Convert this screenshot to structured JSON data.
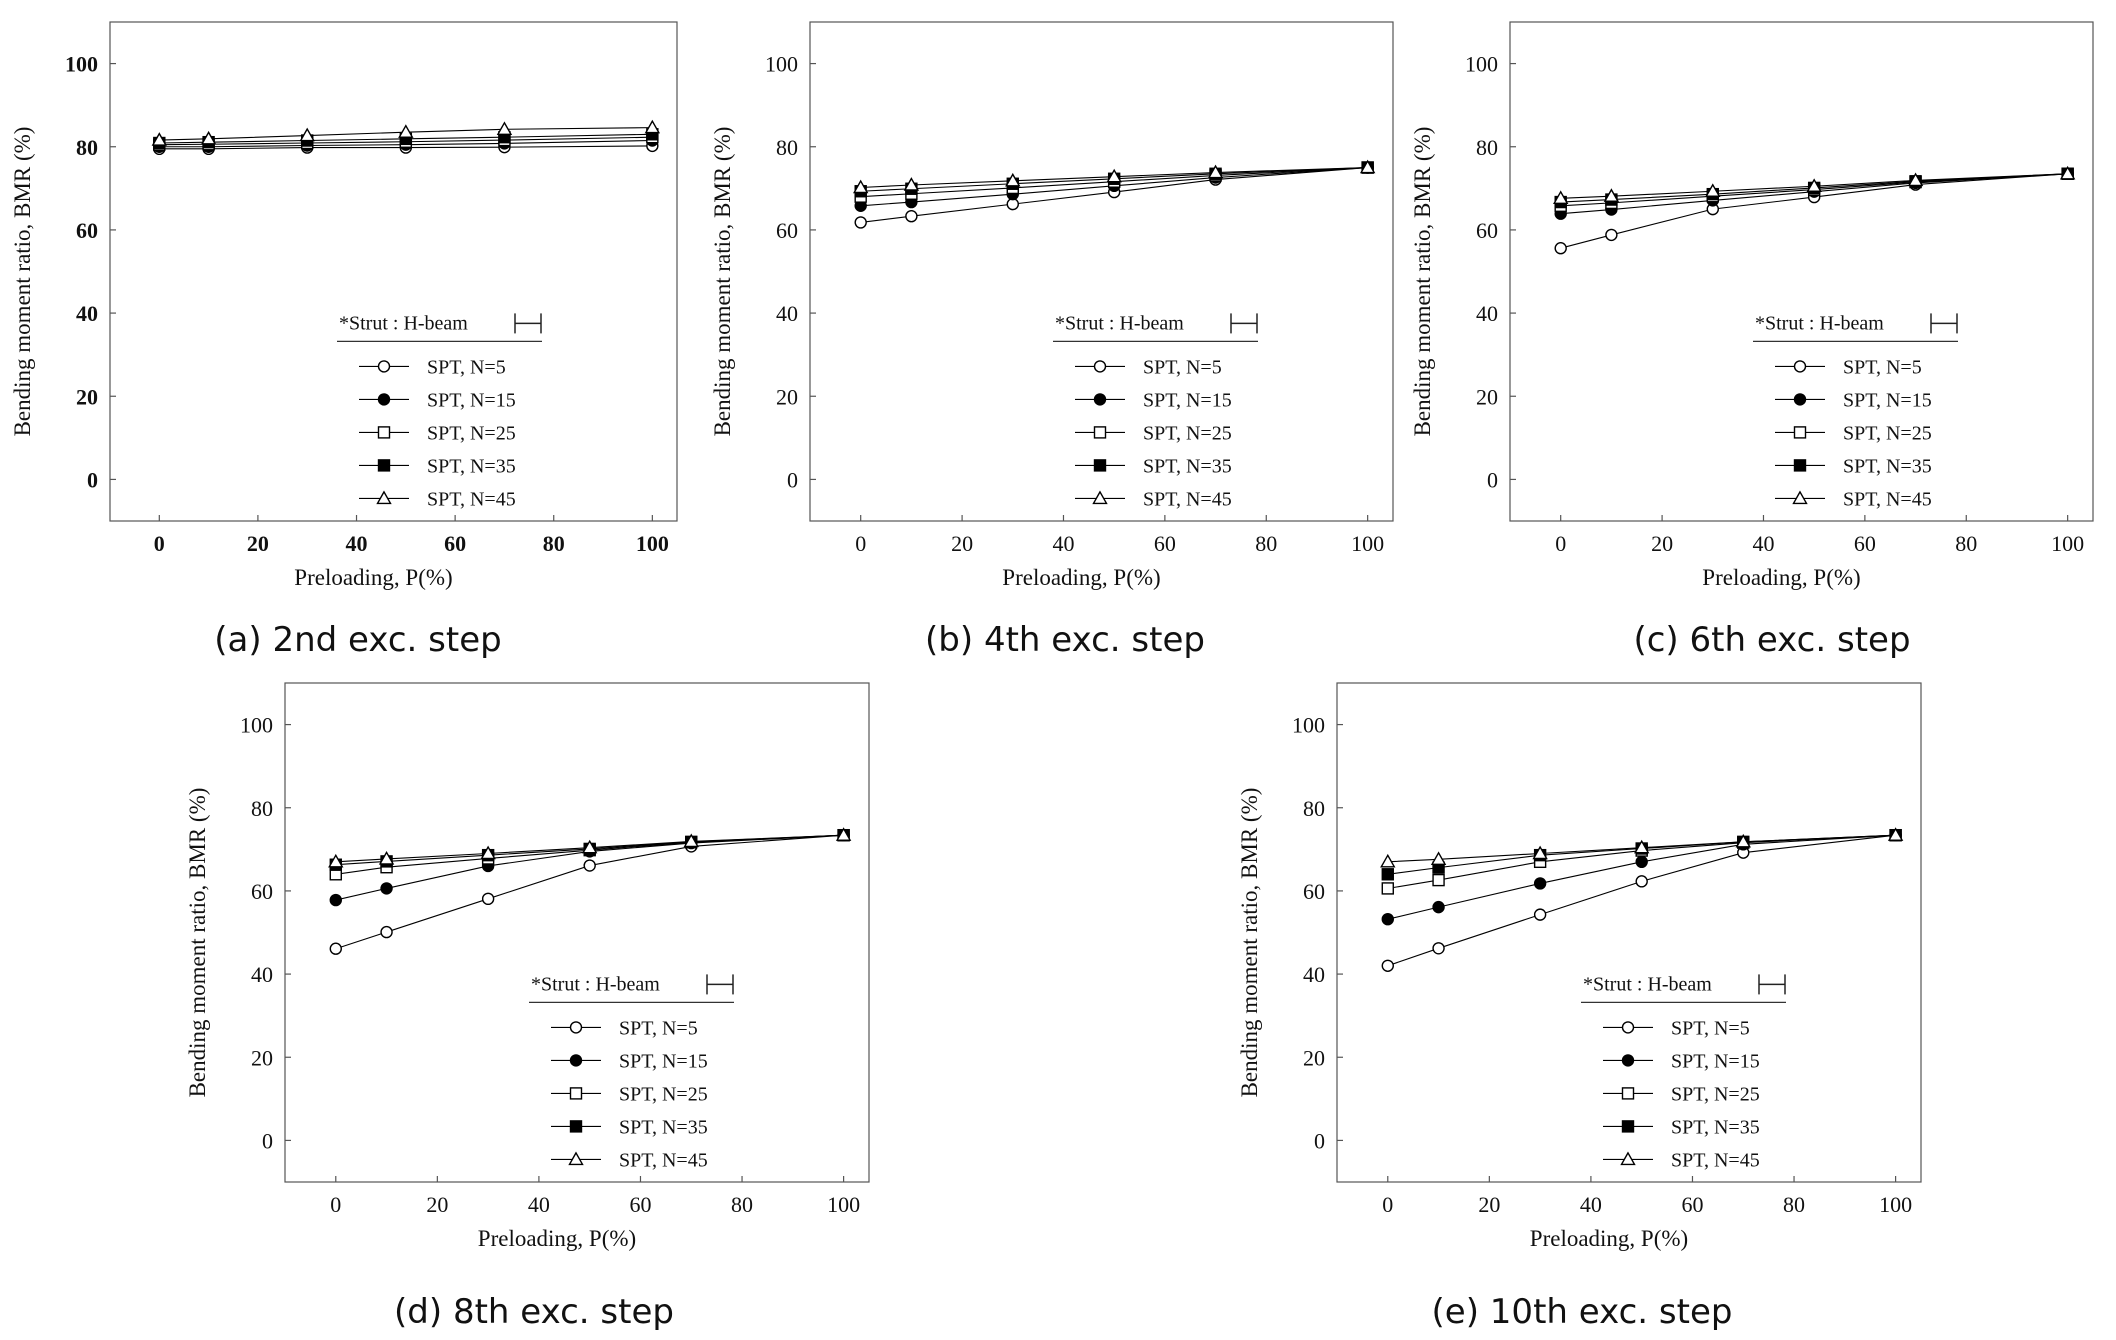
{
  "legend": {
    "header": "*Strut : H-beam",
    "entries": [
      "SPT, N=5",
      "SPT, N=15",
      "SPT, N=25",
      "SPT, N=35",
      "SPT, N=45"
    ]
  },
  "chart_data": [
    {
      "type": "line",
      "caption": "(a) 2nd exc. step",
      "xlabel": "Preloading, P(%)",
      "ylabel": "Bending moment ratio, BMR  (%)",
      "xlim": [
        -10,
        105
      ],
      "ylim": [
        -10,
        110
      ],
      "xticks": [
        0,
        20,
        40,
        60,
        80,
        100
      ],
      "yticks": [
        0,
        20,
        40,
        60,
        80,
        100
      ],
      "bold_ticks": true,
      "x": [
        0,
        10,
        30,
        50,
        70,
        100
      ],
      "legend_position": "bottom-right",
      "series": [
        {
          "name": "SPT, N=5",
          "marker": "circle-open",
          "values": [
            79.5,
            79.5,
            79.8,
            79.8,
            79.9,
            80.2
          ]
        },
        {
          "name": "SPT, N=15",
          "marker": "circle-filled",
          "values": [
            80.0,
            80.0,
            80.3,
            80.5,
            80.8,
            81.5
          ]
        },
        {
          "name": "SPT, N=25",
          "marker": "square-open",
          "values": [
            80.5,
            80.6,
            80.9,
            81.2,
            81.6,
            82.3
          ]
        },
        {
          "name": "SPT, N=35",
          "marker": "square-filled",
          "values": [
            80.9,
            81.1,
            81.5,
            81.9,
            82.3,
            83.0
          ]
        },
        {
          "name": "SPT, N=45",
          "marker": "triangle-open",
          "values": [
            81.6,
            81.9,
            82.7,
            83.5,
            84.2,
            84.6
          ]
        }
      ]
    },
    {
      "type": "line",
      "caption": "(b) 4th exc. step",
      "xlabel": "Preloading, P(%)",
      "ylabel": "Bending moment ratio, BMR  (%)",
      "xlim": [
        -10,
        105
      ],
      "ylim": [
        -10,
        110
      ],
      "xticks": [
        0,
        20,
        40,
        60,
        80,
        100
      ],
      "yticks": [
        0,
        20,
        40,
        60,
        80,
        100
      ],
      "bold_ticks": false,
      "x": [
        0,
        10,
        30,
        50,
        70,
        100
      ],
      "legend_position": "bottom-right",
      "series": [
        {
          "name": "SPT, N=5",
          "marker": "circle-open",
          "values": [
            61.8,
            63.3,
            66.2,
            69.1,
            72.1,
            75.0
          ]
        },
        {
          "name": "SPT, N=15",
          "marker": "circle-filled",
          "values": [
            65.8,
            66.7,
            68.6,
            70.6,
            72.6,
            75.0
          ]
        },
        {
          "name": "SPT, N=25",
          "marker": "square-open",
          "values": [
            68.0,
            68.7,
            70.1,
            71.6,
            73.1,
            75.0
          ]
        },
        {
          "name": "SPT, N=35",
          "marker": "square-filled",
          "values": [
            69.3,
            69.9,
            71.1,
            72.3,
            73.5,
            75.0
          ]
        },
        {
          "name": "SPT, N=45",
          "marker": "triangle-open",
          "values": [
            70.2,
            70.8,
            71.8,
            72.8,
            73.8,
            75.0
          ]
        }
      ]
    },
    {
      "type": "line",
      "caption": "(c) 6th exc. step",
      "xlabel": "Preloading, P(%)",
      "ylabel": "Bending moment ratio, BMR  (%)",
      "xlim": [
        -10,
        105
      ],
      "ylim": [
        -10,
        110
      ],
      "xticks": [
        0,
        20,
        40,
        60,
        80,
        100
      ],
      "yticks": [
        0,
        20,
        40,
        60,
        80,
        100
      ],
      "bold_ticks": false,
      "x": [
        0,
        10,
        30,
        50,
        70,
        100
      ],
      "legend_position": "bottom-right",
      "series": [
        {
          "name": "SPT, N=5",
          "marker": "circle-open",
          "values": [
            55.6,
            58.8,
            65.0,
            67.9,
            70.9,
            73.5
          ]
        },
        {
          "name": "SPT, N=15",
          "marker": "circle-filled",
          "values": [
            63.9,
            64.9,
            67.1,
            69.2,
            71.3,
            73.5
          ]
        },
        {
          "name": "SPT, N=25",
          "marker": "square-open",
          "values": [
            65.8,
            66.5,
            68.1,
            69.7,
            71.5,
            73.5
          ]
        },
        {
          "name": "SPT, N=35",
          "marker": "square-filled",
          "values": [
            66.7,
            67.3,
            68.6,
            70.1,
            71.7,
            73.5
          ]
        },
        {
          "name": "SPT, N=45",
          "marker": "triangle-open",
          "values": [
            67.6,
            68.1,
            69.3,
            70.5,
            71.9,
            73.5
          ]
        }
      ]
    },
    {
      "type": "line",
      "caption": "(d) 8th exc. step",
      "xlabel": "Preloading, P(%)",
      "ylabel": "Bending moment ratio, BMR  (%)",
      "xlim": [
        -10,
        105
      ],
      "ylim": [
        -10,
        110
      ],
      "xticks": [
        0,
        20,
        40,
        60,
        80,
        100
      ],
      "yticks": [
        0,
        20,
        40,
        60,
        80,
        100
      ],
      "bold_ticks": false,
      "x": [
        0,
        10,
        30,
        50,
        70,
        100
      ],
      "legend_position": "bottom-right",
      "series": [
        {
          "name": "SPT, N=5",
          "marker": "circle-open",
          "values": [
            46.1,
            50.1,
            58.1,
            66.1,
            70.7,
            73.4
          ]
        },
        {
          "name": "SPT, N=15",
          "marker": "circle-filled",
          "values": [
            57.8,
            60.6,
            66.0,
            69.5,
            71.5,
            73.4
          ]
        },
        {
          "name": "SPT, N=25",
          "marker": "square-open",
          "values": [
            64.0,
            65.7,
            67.8,
            69.8,
            71.7,
            73.4
          ]
        },
        {
          "name": "SPT, N=35",
          "marker": "square-filled",
          "values": [
            66.3,
            67.1,
            68.6,
            70.1,
            71.8,
            73.4
          ]
        },
        {
          "name": "SPT, N=45",
          "marker": "triangle-open",
          "values": [
            67.0,
            67.7,
            69.0,
            70.4,
            71.9,
            73.4
          ]
        }
      ]
    },
    {
      "type": "line",
      "caption": "(e) 10th exc. step",
      "xlabel": "Preloading, P(%)",
      "ylabel": "Bending moment ratio, BMR  (%)",
      "xlim": [
        -10,
        105
      ],
      "ylim": [
        -10,
        110
      ],
      "xticks": [
        0,
        20,
        40,
        60,
        80,
        100
      ],
      "yticks": [
        0,
        20,
        40,
        60,
        80,
        100
      ],
      "bold_ticks": false,
      "x": [
        0,
        10,
        30,
        50,
        70,
        100
      ],
      "legend_position": "bottom-right",
      "series": [
        {
          "name": "SPT, N=5",
          "marker": "circle-open",
          "values": [
            42.0,
            46.2,
            54.3,
            62.3,
            69.2,
            73.4
          ]
        },
        {
          "name": "SPT, N=15",
          "marker": "circle-filled",
          "values": [
            53.2,
            56.1,
            61.8,
            67.0,
            71.2,
            73.4
          ]
        },
        {
          "name": "SPT, N=25",
          "marker": "square-open",
          "values": [
            60.6,
            62.6,
            67.0,
            69.7,
            71.6,
            73.4
          ]
        },
        {
          "name": "SPT, N=35",
          "marker": "square-filled",
          "values": [
            64.0,
            65.6,
            68.6,
            70.2,
            71.8,
            73.4
          ]
        },
        {
          "name": "SPT, N=45",
          "marker": "triangle-open",
          "values": [
            67.0,
            67.6,
            69.0,
            70.4,
            71.8,
            73.4
          ]
        }
      ]
    }
  ]
}
